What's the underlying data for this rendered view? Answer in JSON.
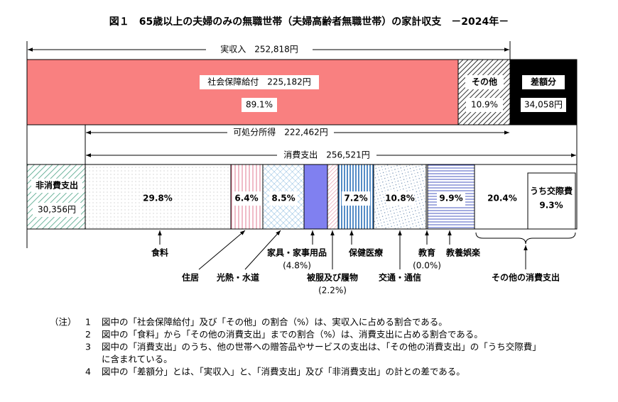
{
  "title": "図１　65歳以上の夫婦のみの無職世帯（夫婦高齢者無職世帯）の家計収支　－2024年－",
  "income": "実収入　252,818円",
  "top_bar": {
    "social_security": {
      "label": "社会保障給付　225,182円",
      "percent": "89.1%"
    },
    "other": {
      "label": "その他",
      "percent": "10.9%"
    },
    "deficit": {
      "label": "差額分",
      "amount": "34,058円"
    }
  },
  "disposable_income": "可処分所得　222,462円",
  "consumption": "消費支出　256,521円",
  "bottom_bar": {
    "non_consumption": {
      "label": "非消費支出",
      "amount": "30,356円"
    },
    "percents": [
      "29.8%",
      "6.4%",
      "8.5%",
      "7.2%",
      "10.8%",
      "9.9%",
      "20.4%"
    ],
    "entertainment_sub": {
      "label": "うち交際費",
      "percent": "9.3%"
    }
  },
  "categories": {
    "food": "食料",
    "housing": "住居",
    "utilities": "光熱・水道",
    "furniture": {
      "label": "家具・家事用品",
      "percent": "(4.8%)"
    },
    "clothing": {
      "label": "被服及び履物",
      "percent": "(2.2%)"
    },
    "medical": "保健医療",
    "transport": "交通・通信",
    "education": {
      "label": "教育",
      "percent": "(0.0%)"
    },
    "recreation": "教養娯楽",
    "other": "その他の消費支出"
  },
  "notes": {
    "label": "（注）",
    "items": [
      {
        "number": "1",
        "lines": [
          "図中の「社会保障給付」及び「その他」の割合（%）は、実収入に占める割合である。"
        ]
      },
      {
        "number": "2",
        "lines": [
          "図中の「食料」から「その他の消費支出」までの割合（%）は、消費支出に占める割合である。"
        ]
      },
      {
        "number": "3",
        "lines": [
          "図中の「消費支出」のうち、他の世帯への贈答品やサービスの支出は、「その他の消費支出」の「うち交際費」",
          "に含まれている。"
        ]
      },
      {
        "number": "4",
        "lines": [
          "図中の「差額分」とは、「実収入」と、「消費支出」及び「非消費支出」の計との差である。"
        ]
      }
    ]
  }
}
